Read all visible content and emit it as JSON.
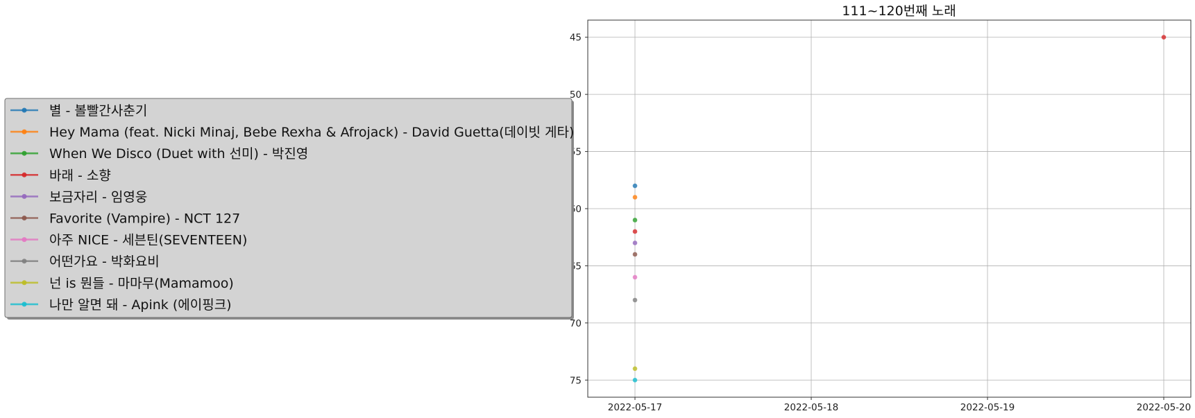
{
  "chart_data": {
    "type": "line",
    "title": "111~120번째 노래",
    "xlabel": "",
    "ylabel": "",
    "x_tick_labels": [
      "2022-05-17",
      "2022-05-18",
      "2022-05-19",
      "2022-05-20"
    ],
    "xlim": [
      "2022-05-17",
      "2022-05-20"
    ],
    "ylim": [
      76.5,
      43.5
    ],
    "y_inverted": true,
    "y_ticks": [
      45,
      50,
      55,
      60,
      65,
      70,
      75
    ],
    "grid": true,
    "legend_position": "left",
    "series": [
      {
        "name": "별 - 볼빨간사춘기",
        "color": "#1f77b4",
        "points": [
          {
            "x": "2022-05-17",
            "y": 58
          }
        ]
      },
      {
        "name": "Hey Mama (feat. Nicki Minaj, Bebe Rexha & Afrojack) - David Guetta(데이빗 게타)",
        "color": "#ff7f0e",
        "points": [
          {
            "x": "2022-05-17",
            "y": 59
          }
        ]
      },
      {
        "name": "When We Disco (Duet with 선미) - 박진영",
        "color": "#2ca02c",
        "points": [
          {
            "x": "2022-05-17",
            "y": 61
          }
        ]
      },
      {
        "name": "바래 - 소향",
        "color": "#d62728",
        "points": [
          {
            "x": "2022-05-17",
            "y": 62
          },
          {
            "x": "2022-05-20",
            "y": 45
          }
        ]
      },
      {
        "name": "보금자리 - 임영웅",
        "color": "#9467bd",
        "points": [
          {
            "x": "2022-05-17",
            "y": 63
          }
        ]
      },
      {
        "name": "Favorite (Vampire) - NCT 127",
        "color": "#8c564b",
        "points": [
          {
            "x": "2022-05-17",
            "y": 64
          }
        ]
      },
      {
        "name": "아주 NICE - 세븐틴(SEVENTEEN)",
        "color": "#e377c2",
        "points": [
          {
            "x": "2022-05-17",
            "y": 66
          }
        ]
      },
      {
        "name": "어떤가요 - 박화요비",
        "color": "#7f7f7f",
        "points": [
          {
            "x": "2022-05-17",
            "y": 68
          }
        ]
      },
      {
        "name": "넌 is 뭔들 - 마마무(Mamamoo)",
        "color": "#bcbd22",
        "points": [
          {
            "x": "2022-05-17",
            "y": 74
          }
        ]
      },
      {
        "name": "나만 알면 돼 - Apink (에이핑크)",
        "color": "#17becf",
        "points": [
          {
            "x": "2022-05-17",
            "y": 75
          }
        ]
      }
    ]
  }
}
